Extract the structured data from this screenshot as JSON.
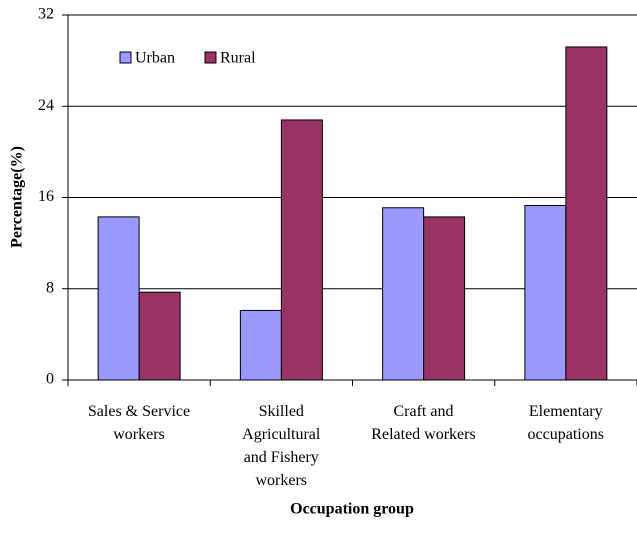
{
  "chart_data": {
    "type": "bar",
    "categories": [
      "Sales & Service\nworkers",
      "Skilled\nAgricultural\nand Fishery\nworkers",
      "Craft and\nRelated workers",
      "Elementary\noccupations"
    ],
    "series": [
      {
        "name": "Urban",
        "color": "#9999ff",
        "values": [
          14.3,
          6.1,
          15.1,
          15.3
        ]
      },
      {
        "name": "Rural",
        "color": "#993366",
        "values": [
          7.7,
          22.8,
          14.3,
          29.2
        ]
      }
    ],
    "xlabel": "Occupation group",
    "ylabel": "Percentage(%)",
    "ylim": [
      0,
      32
    ],
    "yticks": [
      0,
      8,
      16,
      24,
      32
    ],
    "grid": true,
    "legend": "upper left"
  }
}
